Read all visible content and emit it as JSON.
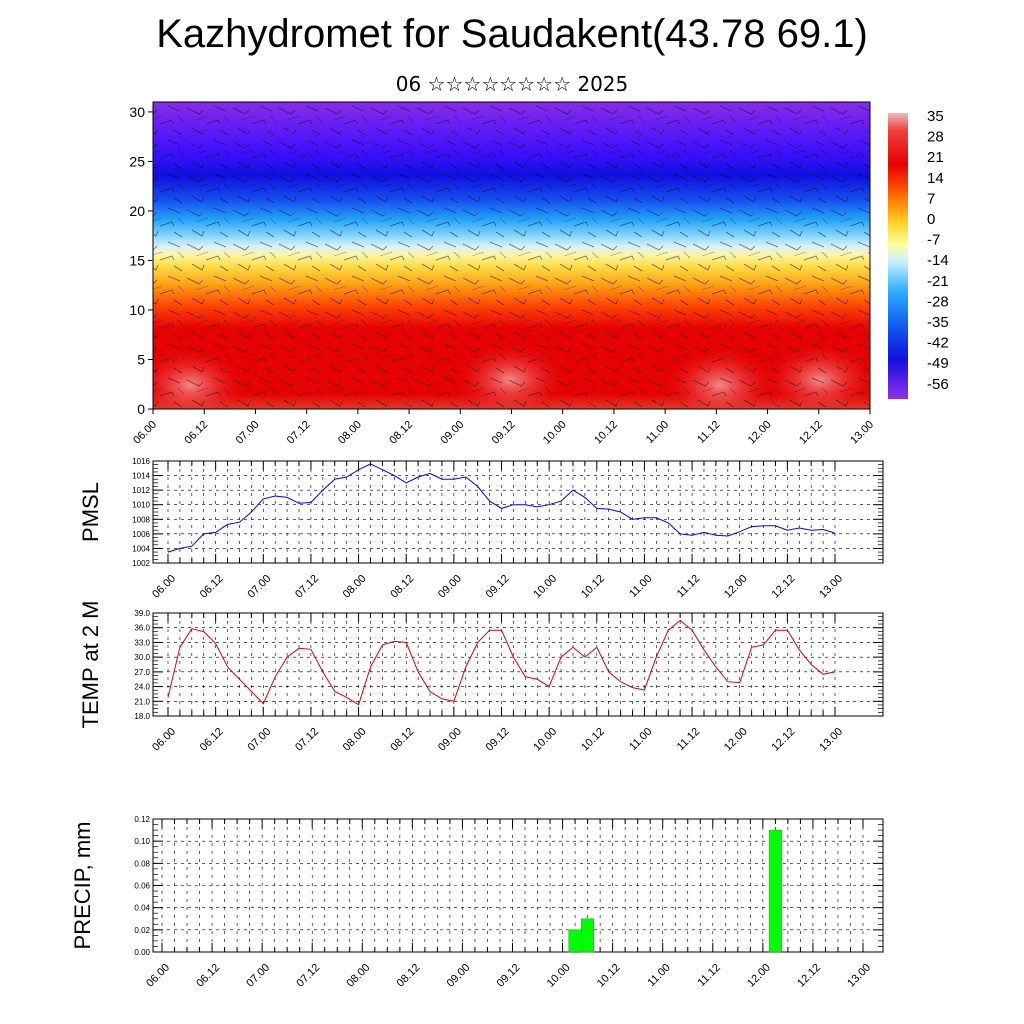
{
  "title": "Kazhydromet for Saudakent(43.78 69.1)",
  "subtitle": "06 ☆☆☆☆☆☆☆☆ 2025",
  "chart_data": [
    {
      "type": "heatmap",
      "title": "",
      "ylim": [
        0,
        31
      ],
      "ytick_labels": [
        "0",
        "5",
        "10",
        "15",
        "20",
        "25",
        "30"
      ],
      "xtick_labels": [
        "06.00",
        "06.12",
        "07.00",
        "07.12",
        "08.00",
        "08.12",
        "09.00",
        "09.12",
        "10.00",
        "10.12",
        "11.00",
        "11.12",
        "12.00",
        "12.12",
        "13.00"
      ],
      "colorbar": {
        "labels": [
          "35",
          "28",
          "21",
          "14",
          "7",
          "0",
          "-7",
          "-14",
          "-21",
          "-28",
          "-35",
          "-42",
          "-49",
          "-56"
        ],
        "range": [
          -63,
          42
        ]
      },
      "overlay": "wind barbs"
    },
    {
      "type": "line",
      "ylabel": "PMSL",
      "ylim": [
        1002,
        1016
      ],
      "ytick_labels": [
        "1002",
        "1004",
        "1006",
        "1008",
        "1010",
        "1012",
        "1014",
        "1016"
      ],
      "xtick_labels": [
        "06.00",
        "06.12",
        "07.00",
        "07.12",
        "08.00",
        "08.12",
        "09.00",
        "09.12",
        "10.00",
        "10.12",
        "11.00",
        "11.12",
        "12.00",
        "12.12",
        "13.00"
      ],
      "color": "#0000ff",
      "values": [
        1003.5,
        1004.0,
        1004.3,
        1006.0,
        1006.2,
        1007.3,
        1007.6,
        1009.0,
        1010.8,
        1011.2,
        1011.0,
        1010.2,
        1010.3,
        1012.0,
        1013.5,
        1013.8,
        1014.8,
        1015.6,
        1014.8,
        1014.0,
        1013.0,
        1013.8,
        1014.3,
        1013.5,
        1013.5,
        1013.8,
        1012.5,
        1010.5,
        1009.5,
        1010.0,
        1010.0,
        1009.7,
        1010.0,
        1010.5,
        1012.0,
        1011.0,
        1009.5,
        1009.4,
        1009.0,
        1008.0,
        1008.2,
        1008.2,
        1007.5,
        1006.0,
        1005.8,
        1006.2,
        1005.8,
        1005.7,
        1006.3,
        1007.0,
        1007.1,
        1007.1,
        1006.5,
        1006.8,
        1006.5,
        1006.6,
        1006.1
      ]
    },
    {
      "type": "line",
      "ylabel": "TEMP at 2 M",
      "ylim": [
        18.0,
        39.0
      ],
      "ytick_labels": [
        "18.0",
        "21.0",
        "24.0",
        "27.0",
        "30.0",
        "33.0",
        "36.0",
        "39.0"
      ],
      "xtick_labels": [
        "06.00",
        "06.12",
        "07.00",
        "07.12",
        "08.00",
        "08.12",
        "09.00",
        "09.12",
        "10.00",
        "10.12",
        "11.00",
        "11.12",
        "12.00",
        "12.12",
        "13.00"
      ],
      "color": "#e00000",
      "values": [
        21.8,
        32.0,
        35.8,
        35.2,
        32.8,
        28.0,
        25.5,
        23.0,
        20.5,
        26.0,
        30.0,
        31.8,
        31.6,
        27.0,
        23.0,
        21.8,
        20.3,
        28.0,
        32.5,
        33.2,
        33.0,
        27.0,
        23.0,
        21.5,
        21.0,
        28.0,
        33.0,
        35.5,
        35.5,
        30.0,
        26.0,
        25.5,
        24.0,
        30.0,
        32.0,
        30.0,
        32.0,
        27.0,
        25.0,
        23.8,
        23.3,
        30.0,
        35.5,
        37.5,
        35.5,
        31.5,
        28.0,
        25.0,
        24.8,
        32.0,
        32.5,
        35.5,
        35.5,
        31.5,
        28.5,
        26.5,
        27.0
      ]
    },
    {
      "type": "bar",
      "ylabel": "PRECIP, mm",
      "ylim": [
        0.0,
        0.12
      ],
      "ytick_labels": [
        "0.00",
        "0.02",
        "0.04",
        "0.06",
        "0.08",
        "0.10",
        "0.12"
      ],
      "xtick_labels": [
        "06.00",
        "06.12",
        "07.00",
        "07.12",
        "08.00",
        "08.12",
        "09.00",
        "09.12",
        "10.00",
        "10.12",
        "11.00",
        "11.12",
        "12.00",
        "12.12",
        "13.00"
      ],
      "color": "#00ff00",
      "bars": [
        {
          "x": "10.03",
          "value": 0.02
        },
        {
          "x": "10.06",
          "value": 0.03
        },
        {
          "x": "12.03",
          "value": 0.11
        }
      ]
    }
  ]
}
